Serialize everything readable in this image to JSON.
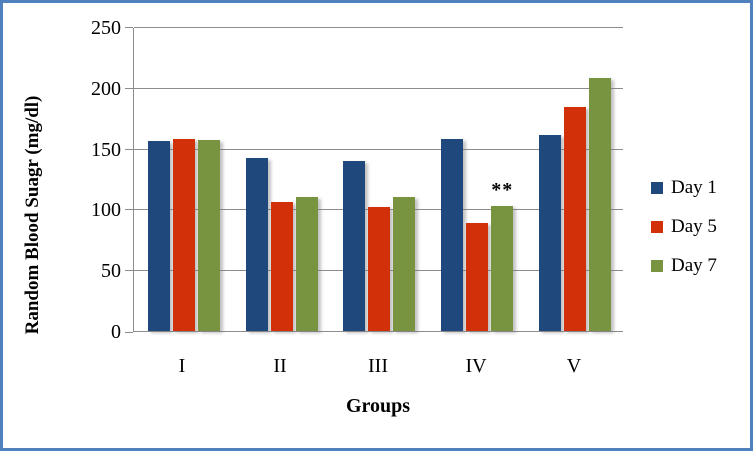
{
  "frame": {
    "border_color": "#4F81BD",
    "background": "#FFFFFF"
  },
  "axis": {
    "line_color": "#8C8C8C",
    "grid_color": "#8C8C8C",
    "text_color": "#000000"
  },
  "chart_data": {
    "type": "bar",
    "title": "",
    "xlabel": "Groups",
    "ylabel": "Random Blood Suagr (mg/dl)",
    "categories": [
      "I",
      "II",
      "III",
      "IV",
      "V"
    ],
    "series": [
      {
        "name": "Day 1",
        "color": "#1F497D",
        "values": [
          156,
          142,
          140,
          158,
          161
        ]
      },
      {
        "name": "Day 5",
        "color": "#D23008",
        "values": [
          158,
          106,
          102,
          89,
          184
        ]
      },
      {
        "name": "Day 7",
        "color": "#789440",
        "values": [
          157,
          110,
          110,
          103,
          208
        ]
      }
    ],
    "ylim": [
      0,
      250
    ],
    "ytick_step": 50,
    "yticks": [
      "0",
      "50",
      "100",
      "150",
      "200",
      "250"
    ],
    "grid": true,
    "legend_position": "right",
    "annotation": {
      "text": "**",
      "series": "Day 7",
      "category": "IV"
    }
  }
}
